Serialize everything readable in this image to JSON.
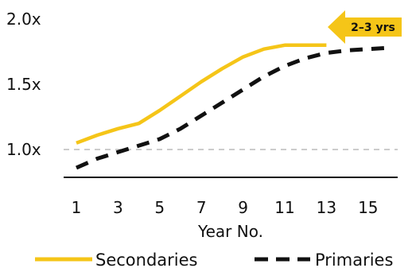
{
  "chart_data": {
    "type": "line",
    "xlabel": "Year No.",
    "ylabel": "",
    "x_ticks": [
      "1",
      "3",
      "5",
      "7",
      "9",
      "11",
      "13",
      "15"
    ],
    "y_ticks": [
      "2.0x",
      "1.5x",
      "1.0x"
    ],
    "ylim": [
      0.8,
      2.0
    ],
    "reference_line": 1.0,
    "series": [
      {
        "name": "Secondaries",
        "color": "#F5C518",
        "style": "solid",
        "x": [
          1,
          2,
          3,
          4,
          5,
          6,
          7,
          8,
          9,
          10,
          11,
          12,
          13
        ],
        "y": [
          1.05,
          1.11,
          1.16,
          1.2,
          1.3,
          1.41,
          1.52,
          1.62,
          1.71,
          1.77,
          1.8,
          1.8,
          1.8
        ]
      },
      {
        "name": "Primaries",
        "color": "#111111",
        "style": "dashed",
        "x": [
          1,
          2,
          3,
          4,
          5,
          6,
          7,
          8,
          9,
          10,
          11,
          12,
          13,
          14,
          15,
          16
        ],
        "y": [
          0.86,
          0.93,
          0.98,
          1.03,
          1.08,
          1.16,
          1.26,
          1.36,
          1.46,
          1.56,
          1.64,
          1.7,
          1.74,
          1.76,
          1.77,
          1.78
        ]
      }
    ],
    "annotation": {
      "text": "2–3 yrs",
      "color": "#F5C518"
    },
    "legend": {
      "position": "bottom"
    }
  }
}
